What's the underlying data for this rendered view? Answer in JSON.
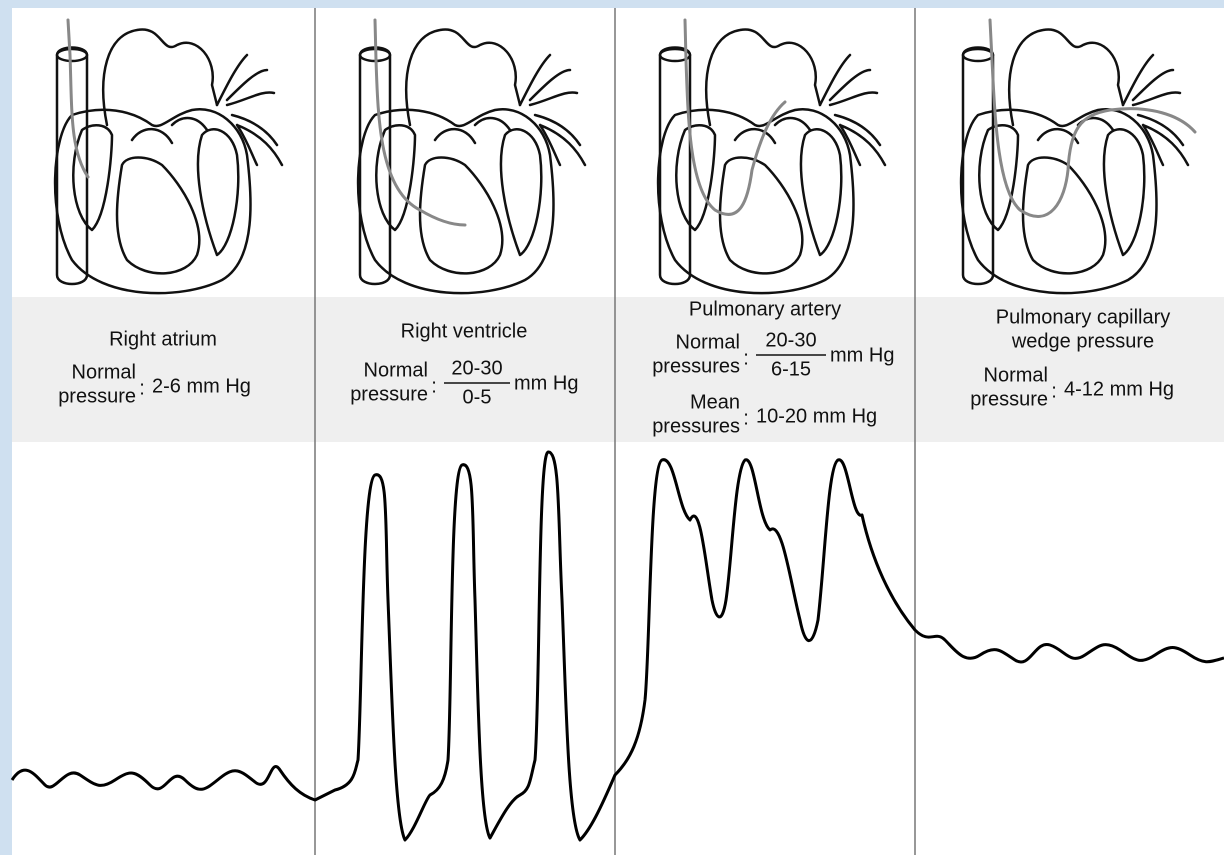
{
  "colon": ":",
  "panels": [
    {
      "title": [
        "Right atrium"
      ],
      "rows": [
        {
          "label": [
            "Normal",
            "pressure"
          ],
          "value": "2-6 mm Hg"
        }
      ]
    },
    {
      "title": [
        "Right ventricle"
      ],
      "rows": [
        {
          "label": [
            "Normal",
            "pressure"
          ],
          "numerator": "20-30",
          "denominator": "0-5",
          "unit": "mm Hg"
        }
      ]
    },
    {
      "title": [
        "Pulmonary artery"
      ],
      "rows": [
        {
          "label": [
            "Normal",
            "pressures"
          ],
          "numerator": "20-30",
          "denominator": "6-15",
          "unit": "mm Hg"
        },
        {
          "label": [
            "Mean",
            "pressures"
          ],
          "value": "10-20 mm Hg"
        }
      ]
    },
    {
      "title": [
        "Pulmonary capillary",
        "wedge pressure"
      ],
      "rows": [
        {
          "label": [
            "Normal",
            "pressure"
          ],
          "value": "4-12 mm Hg"
        }
      ]
    }
  ]
}
